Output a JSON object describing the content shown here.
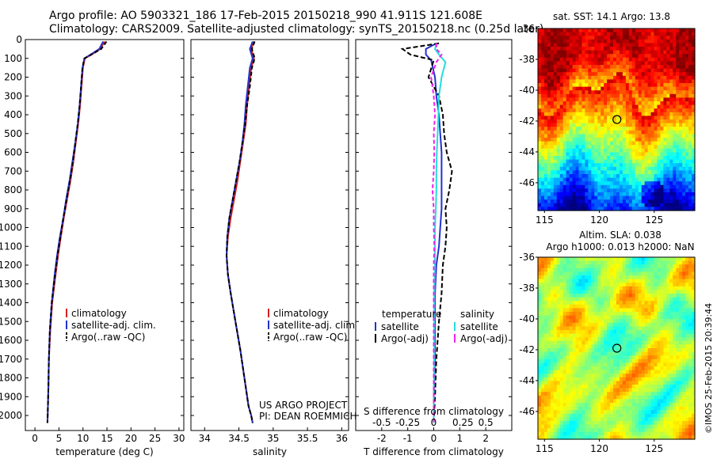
{
  "header": {
    "line1": "Argo profile: AO 5903321_186 17-Feb-2015 20150218_990 41.911S 121.608E",
    "line2": "Climatology: CARS2009. Satellite-adjusted climatology: synTS_20150218.nc (0.25d later)"
  },
  "credit": "©IMOS 25-Feb-2015 20:39:44",
  "colors": {
    "climatology": "#d42020",
    "satellite": "#2233cc",
    "argo": "#000000",
    "sal_satellite": "#22dddd",
    "sal_argo": "#ee22ee"
  },
  "chart_data": [
    {
      "type": "line",
      "id": "temperature-profile",
      "xlabel": "temperature (deg C)",
      "xlim": [
        -2,
        31
      ],
      "ylim": [
        2080,
        0
      ],
      "xticks": [
        0,
        5,
        10,
        15,
        20,
        25,
        30
      ],
      "yticks": [
        0,
        100,
        200,
        300,
        400,
        500,
        600,
        700,
        800,
        900,
        1000,
        1100,
        1200,
        1300,
        1400,
        1500,
        1600,
        1700,
        1800,
        1900,
        2000
      ],
      "legend": [
        "climatology",
        "satellite-adj. clim.",
        "Argo(..raw -QC)"
      ],
      "series": [
        {
          "name": "climatology",
          "x": [
            14.5,
            13.6,
            11.8,
            10.4,
            10.0,
            9.7,
            9.4,
            9.0,
            8.5,
            8.0,
            7.4,
            6.7,
            6.0,
            5.4,
            4.8,
            4.3,
            3.6,
            3.2,
            2.9,
            2.8,
            2.7,
            2.6
          ],
          "depth": [
            10,
            50,
            80,
            100,
            150,
            250,
            350,
            450,
            550,
            650,
            750,
            850,
            950,
            1050,
            1150,
            1250,
            1400,
            1550,
            1700,
            1850,
            1950,
            2040
          ]
        },
        {
          "name": "satellite-adj. clim.",
          "x": [
            14.2,
            13.4,
            11.6,
            10.3,
            9.9,
            9.6,
            9.3,
            8.9,
            8.4,
            7.8,
            7.2,
            6.5,
            5.9,
            5.2,
            4.6,
            4.1,
            3.5,
            3.1,
            2.9,
            2.8,
            2.7,
            2.6
          ],
          "depth": [
            10,
            50,
            80,
            100,
            150,
            250,
            350,
            450,
            550,
            650,
            750,
            850,
            950,
            1050,
            1150,
            1250,
            1400,
            1550,
            1700,
            1850,
            1950,
            2040
          ]
        },
        {
          "name": "Argo(..raw -QC)",
          "x": [
            14.9,
            13.8,
            11.7,
            10.3,
            9.9,
            9.6,
            9.3,
            8.9,
            8.4,
            7.9,
            7.3,
            6.6,
            5.9,
            5.3,
            4.7,
            4.2,
            3.5,
            3.1,
            2.9,
            2.8,
            2.7,
            2.6
          ],
          "depth": [
            10,
            50,
            80,
            100,
            150,
            250,
            350,
            450,
            550,
            650,
            750,
            850,
            950,
            1050,
            1150,
            1250,
            1400,
            1550,
            1700,
            1850,
            1950,
            2040
          ]
        }
      ]
    },
    {
      "type": "line",
      "id": "salinity-profile",
      "xlabel": "salinity",
      "xlim": [
        33.8,
        36.1
      ],
      "ylim": [
        2080,
        0
      ],
      "xticks": [
        34,
        34.5,
        35,
        35.5,
        36
      ],
      "xtick_labels": [
        "34",
        "34.5",
        "35",
        "35.5",
        "36"
      ],
      "legend": [
        "climatology",
        "satellite-adj. clim.",
        "Argo(..raw -QC)"
      ],
      "annotation": [
        "US ARGO PROJECT",
        "PI: DEAN ROEMMICH"
      ],
      "series": [
        {
          "name": "climatology",
          "x": [
            34.72,
            34.68,
            34.72,
            34.68,
            34.65,
            34.62,
            34.6,
            34.56,
            34.52,
            34.48,
            34.43,
            34.38,
            34.34,
            34.32,
            34.34,
            34.38,
            34.45,
            34.52,
            34.58,
            34.64,
            34.68,
            34.7
          ],
          "depth": [
            10,
            50,
            100,
            150,
            250,
            350,
            450,
            550,
            650,
            750,
            850,
            950,
            1050,
            1150,
            1250,
            1350,
            1500,
            1650,
            1800,
            1950,
            2000,
            2040
          ]
        },
        {
          "name": "satellite-adj. clim.",
          "x": [
            34.7,
            34.66,
            34.7,
            34.66,
            34.63,
            34.6,
            34.58,
            34.55,
            34.51,
            34.46,
            34.41,
            34.36,
            34.33,
            34.32,
            34.34,
            34.38,
            34.45,
            34.52,
            34.58,
            34.64,
            34.68,
            34.7
          ],
          "depth": [
            10,
            50,
            100,
            150,
            250,
            350,
            450,
            550,
            650,
            750,
            850,
            950,
            1050,
            1150,
            1250,
            1350,
            1500,
            1650,
            1800,
            1950,
            2000,
            2040
          ]
        },
        {
          "name": "Argo(..raw -QC)",
          "x": [
            34.73,
            34.69,
            34.73,
            34.69,
            34.66,
            34.62,
            34.59,
            34.55,
            34.51,
            34.46,
            34.41,
            34.36,
            34.33,
            34.32,
            34.34,
            34.38,
            34.45,
            34.52,
            34.58,
            34.64,
            34.68,
            34.7
          ],
          "depth": [
            10,
            50,
            100,
            150,
            250,
            350,
            450,
            550,
            650,
            750,
            850,
            950,
            1050,
            1150,
            1250,
            1350,
            1500,
            1650,
            1800,
            1950,
            2000,
            2040
          ]
        }
      ]
    },
    {
      "type": "line",
      "id": "difference-profile",
      "xlabel": "T difference from climatology",
      "xlabel_top": "S difference from climatology",
      "xlim": [
        -3,
        3
      ],
      "ylim": [
        2080,
        0
      ],
      "xticks": [
        -2,
        -1,
        0,
        1,
        2
      ],
      "s_ticks": [
        "-0.5",
        "-0.25",
        "0",
        "0.25",
        "0.5"
      ],
      "legend_temperature_title": "temperature",
      "legend_salinity_title": "salinity",
      "legend_temperature": [
        "satellite",
        "Argo(-adj)"
      ],
      "legend_salinity": [
        "satellite",
        "Argo(-adj)"
      ],
      "series": [
        {
          "name": "temperature satellite",
          "x": [
            0.1,
            -0.3,
            -0.3,
            -0.1,
            0.05,
            0.1,
            0.2,
            0.25,
            0.3,
            0.3,
            0.3,
            0.3,
            0.25,
            0.2,
            0.1,
            0.05,
            0.05,
            0.05,
            0.0,
            0.0
          ],
          "depth": [
            20,
            50,
            80,
            110,
            200,
            300,
            400,
            500,
            600,
            700,
            800,
            900,
            1000,
            1100,
            1200,
            1350,
            1500,
            1700,
            1900,
            2040
          ]
        },
        {
          "name": "temperature Argo(-adj)",
          "x": [
            0.2,
            -1.2,
            -0.9,
            0.0,
            -0.2,
            0.2,
            0.35,
            0.4,
            0.5,
            0.7,
            0.6,
            0.45,
            0.5,
            0.45,
            0.35,
            0.3,
            0.2,
            0.1,
            0.05,
            0.0
          ],
          "depth": [
            20,
            50,
            80,
            110,
            200,
            300,
            400,
            500,
            600,
            700,
            800,
            900,
            1000,
            1100,
            1200,
            1350,
            1500,
            1700,
            1900,
            2040
          ]
        },
        {
          "name": "salinity satellite",
          "x": [
            0.1,
            0.05,
            0.2,
            0.45,
            0.3,
            0.2,
            0.18,
            0.15,
            0.12,
            0.1,
            0.1,
            0.08,
            0.05,
            0.05,
            0.05,
            0.02,
            0.02,
            0.02,
            0.0,
            0.0
          ],
          "depth": [
            20,
            50,
            80,
            120,
            200,
            300,
            400,
            500,
            600,
            700,
            800,
            900,
            1000,
            1100,
            1200,
            1350,
            1500,
            1700,
            1900,
            2040
          ]
        },
        {
          "name": "salinity Argo(-adj)",
          "x": [
            0.1,
            0.1,
            0.3,
            0.1,
            -0.1,
            0.0,
            0.05,
            0.0,
            0.02,
            0.0,
            -0.05,
            0.0,
            0.0,
            0.02,
            0.0,
            0.0,
            0.0,
            0.0,
            0.0,
            0.0
          ],
          "depth": [
            20,
            50,
            80,
            120,
            200,
            300,
            400,
            500,
            600,
            700,
            800,
            900,
            1000,
            1100,
            1200,
            1350,
            1500,
            1700,
            1900,
            2040
          ]
        }
      ]
    },
    {
      "type": "heatmap",
      "id": "sst-map",
      "title": "sat. SST: 14.1  Argo: 13.8",
      "xlim": [
        114.4,
        128.7
      ],
      "ylim": [
        -47.8,
        -36
      ],
      "xticks": [
        115,
        120,
        125
      ],
      "yticks": [
        -36,
        -38,
        -40,
        -42,
        -44,
        -46
      ],
      "marker": {
        "lon": 121.6,
        "lat": -41.9
      },
      "palette": "jet"
    },
    {
      "type": "heatmap",
      "id": "sla-map",
      "title": "Altim. SLA: 0.038",
      "subtitle": "Argo h1000: 0.013 h2000: NaN",
      "xlim": [
        114.4,
        128.7
      ],
      "ylim": [
        -47.8,
        -36
      ],
      "xticks": [
        115,
        120,
        125
      ],
      "yticks": [
        -36,
        -38,
        -40,
        -42,
        -44,
        -46
      ],
      "marker": {
        "lon": 121.6,
        "lat": -41.9
      },
      "palette": "jet"
    }
  ]
}
